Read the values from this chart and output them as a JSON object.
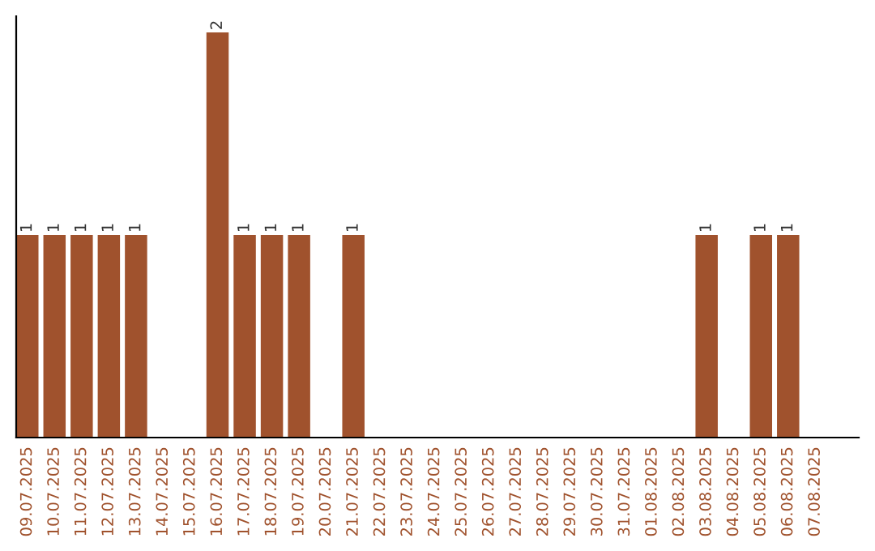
{
  "chart_data": {
    "type": "bar",
    "categories": [
      "09.07.2025",
      "10.07.2025",
      "11.07.2025",
      "12.07.2025",
      "13.07.2025",
      "14.07.2025",
      "15.07.2025",
      "16.07.2025",
      "17.07.2025",
      "18.07.2025",
      "19.07.2025",
      "20.07.2025",
      "21.07.2025",
      "22.07.2025",
      "23.07.2025",
      "24.07.2025",
      "25.07.2025",
      "26.07.2025",
      "27.07.2025",
      "28.07.2025",
      "29.07.2025",
      "30.07.2025",
      "31.07.2025",
      "01.08.2025",
      "02.08.2025",
      "03.08.2025",
      "04.08.2025",
      "05.08.2025",
      "06.08.2025",
      "07.08.2025"
    ],
    "values": [
      1,
      1,
      1,
      1,
      1,
      0,
      0,
      2,
      1,
      1,
      1,
      0,
      1,
      0,
      0,
      0,
      0,
      0,
      0,
      0,
      0,
      0,
      0,
      0,
      0,
      1,
      0,
      1,
      1,
      0
    ],
    "value_labels": [
      "1",
      "1",
      "1",
      "1",
      "1",
      null,
      null,
      "2",
      "1",
      "1",
      "1",
      null,
      "1",
      null,
      null,
      null,
      null,
      null,
      null,
      null,
      null,
      null,
      null,
      null,
      null,
      "1",
      null,
      "1",
      "1",
      null
    ],
    "color": "#a0522d",
    "grid": false,
    "legend": false
  }
}
